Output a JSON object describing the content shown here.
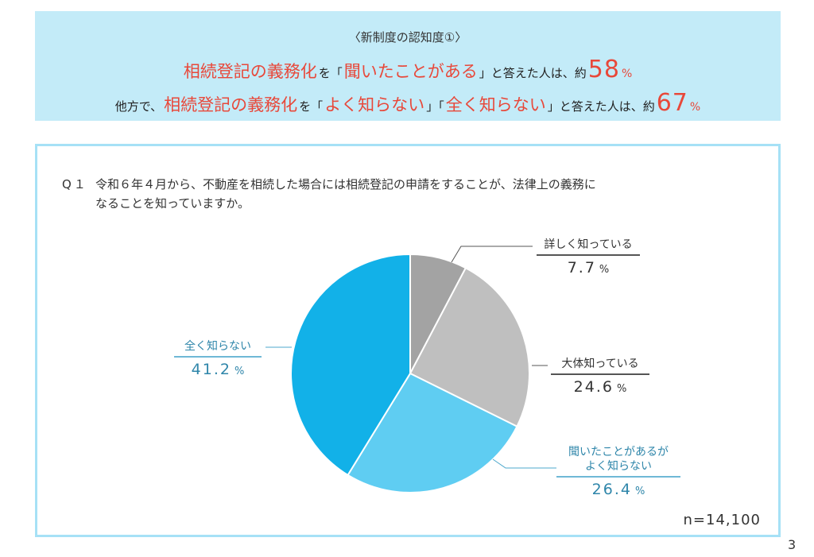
{
  "headline": {
    "subtitle": "〈新制度の認知度①〉",
    "line1": {
      "emphasis": "相続登記の義務化",
      "text_a": "を「",
      "quote": "聞いたことがある",
      "text_b": "」と答えた人は、約",
      "number": "58",
      "unit": "%"
    },
    "line2": {
      "prefix": "他方で、",
      "emphasis": "相続登記の義務化",
      "text_a": " を「",
      "quote1": "よく知らない",
      "text_b": "」「",
      "quote2": "全く知らない",
      "text_c": "」と答えた人は、約",
      "number": "67",
      "unit": "%"
    }
  },
  "question": {
    "number": "Q１",
    "line1": "令和６年４月から、不動産を相続した場合には相続登記の申請をすることが、法律上の義務に",
    "line2": "なることを知っていますか。"
  },
  "labels": {
    "detailed": {
      "category": "詳しく知っている",
      "value": "7.7",
      "unit": "%"
    },
    "mostly": {
      "category": "大体知っている",
      "value": "24.6",
      "unit": "%"
    },
    "heard_line1": "聞いたことがあるが",
    "heard_line2": "よく知らない",
    "heard": {
      "value": "26.4",
      "unit": "%"
    },
    "none": {
      "category": "全く知らない",
      "value": "41.2",
      "unit": "%"
    }
  },
  "sample_size": "n=14,100",
  "page_number": "3",
  "colors": {
    "detailed": "#a3a3a3",
    "mostly": "#bfbfbf",
    "heard": "#5fcdf2",
    "none": "#12b1e8",
    "accent_red": "#e8483a",
    "header_bg": "#c3ebf8",
    "box_border": "#a6e1f6"
  },
  "chart_data": {
    "type": "pie",
    "title": "Q１ 令和６年４月から、不動産を相続した場合には相続登記の申請をすることが、法律上の義務になることを知っていますか。",
    "categories": [
      "詳しく知っている",
      "大体知っている",
      "聞いたことがあるがよく知らない",
      "全く知らない"
    ],
    "values": [
      7.7,
      24.6,
      26.4,
      41.2
    ],
    "unit": "%",
    "start_angle": "12 o'clock, clockwise",
    "colors": [
      "#a3a3a3",
      "#bfbfbf",
      "#5fcdf2",
      "#12b1e8"
    ],
    "annotation": "n=14,100",
    "legend": "none (direct labels)"
  }
}
